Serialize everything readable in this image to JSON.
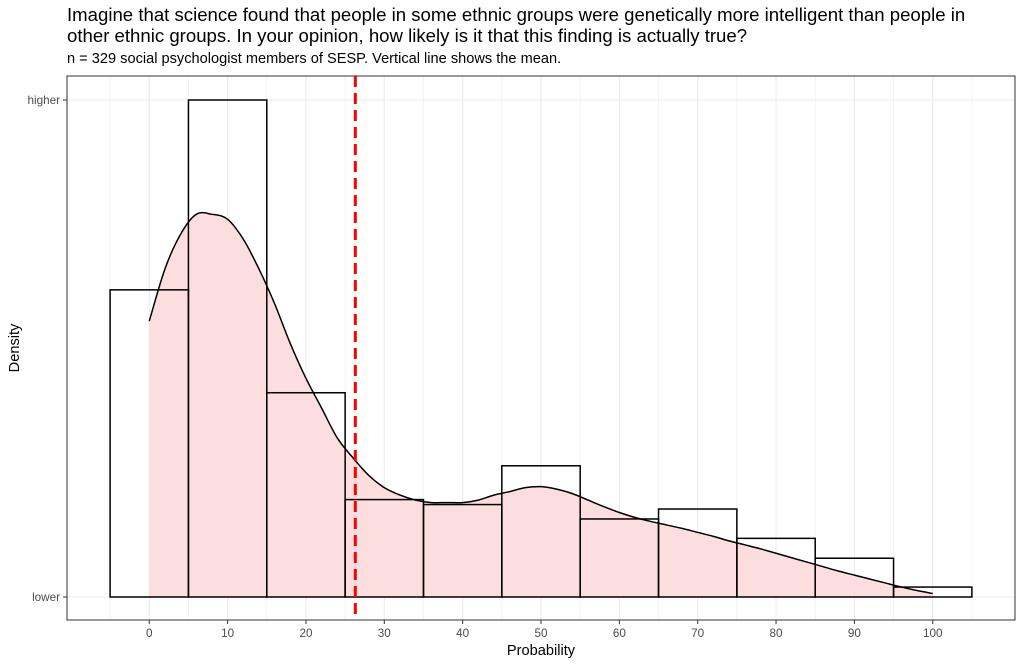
{
  "chart_data": {
    "type": "histogram",
    "title": "Imagine that science found that people in some ethnic groups were genetically more intelligent than people in other ethnic groups. In your opinion, how likely is it that this finding is actually true?",
    "subtitle": "n = 329 social psychologist members of SESP. Vertical line shows the mean.",
    "xlabel": "Probability",
    "ylabel": "Density",
    "xlim": [
      -10.5,
      110.5
    ],
    "ylim": [
      0,
      1
    ],
    "x_ticks": [
      0,
      10,
      20,
      30,
      40,
      50,
      60,
      70,
      80,
      90,
      100
    ],
    "y_tick_labels": [
      {
        "value": 0,
        "label": "lower"
      },
      {
        "value": 1,
        "label": "higher"
      }
    ],
    "grid": true,
    "bins": [
      {
        "center": 0,
        "density": 0.618
      },
      {
        "center": 10,
        "density": 1.0
      },
      {
        "center": 20,
        "density": 0.411
      },
      {
        "center": 30,
        "density": 0.196
      },
      {
        "center": 40,
        "density": 0.186
      },
      {
        "center": 50,
        "density": 0.264
      },
      {
        "center": 60,
        "density": 0.157
      },
      {
        "center": 70,
        "density": 0.177
      },
      {
        "center": 80,
        "density": 0.118
      },
      {
        "center": 90,
        "density": 0.078
      },
      {
        "center": 100,
        "density": 0.02
      }
    ],
    "bin_width": 10,
    "density_curve": {
      "x": [
        0,
        2,
        4,
        6,
        8,
        10,
        12,
        14,
        16,
        18,
        20,
        22,
        24,
        26,
        28,
        30,
        32,
        34,
        36,
        38,
        40,
        42,
        44,
        46,
        48,
        50,
        52,
        54,
        56,
        58,
        60,
        62,
        64,
        66,
        68,
        70,
        72,
        74,
        76,
        78,
        80,
        82,
        84,
        86,
        88,
        90,
        92,
        94,
        96,
        98,
        100
      ],
      "y": [
        0.555,
        0.66,
        0.73,
        0.77,
        0.77,
        0.76,
        0.72,
        0.66,
        0.59,
        0.51,
        0.44,
        0.38,
        0.32,
        0.28,
        0.245,
        0.22,
        0.205,
        0.195,
        0.19,
        0.19,
        0.19,
        0.195,
        0.205,
        0.212,
        0.22,
        0.222,
        0.217,
        0.208,
        0.195,
        0.182,
        0.17,
        0.16,
        0.152,
        0.145,
        0.138,
        0.13,
        0.122,
        0.113,
        0.105,
        0.097,
        0.088,
        0.079,
        0.07,
        0.061,
        0.052,
        0.044,
        0.036,
        0.028,
        0.02,
        0.013,
        0.007
      ]
    },
    "mean": 26.3,
    "colors": {
      "fill": "#fddede",
      "bar_stroke": "#000000",
      "mean_line": "#ff0000",
      "grid": "#ebebeb",
      "panel_border": "#333333"
    }
  }
}
